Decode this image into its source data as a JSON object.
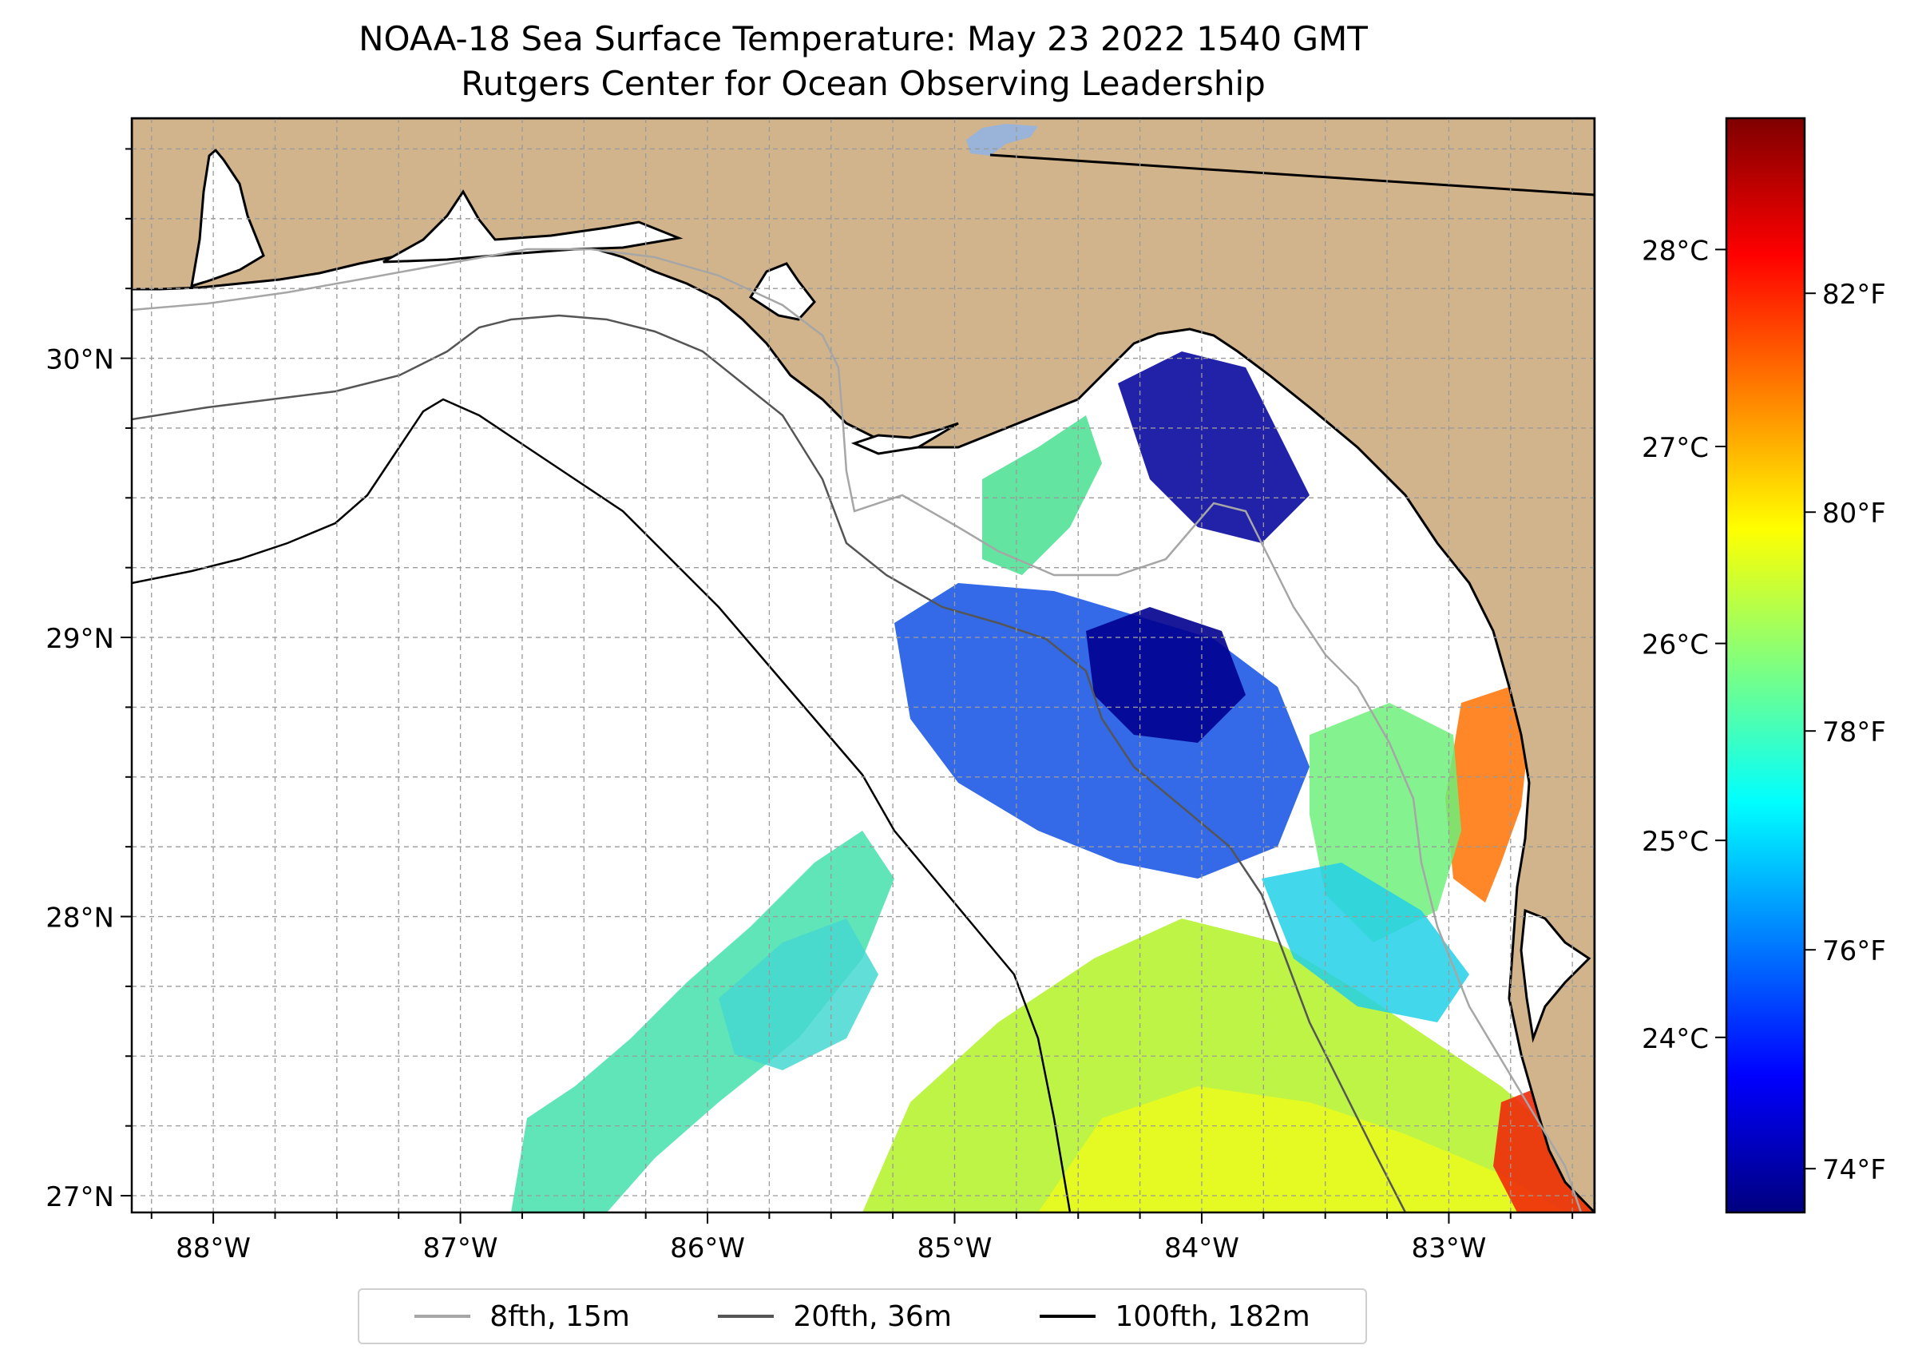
{
  "title": {
    "line1": "NOAA-18 Sea Surface Temperature: May 23 2022 1540 GMT",
    "line2": "Rutgers Center for Ocean Observing Leadership"
  },
  "map": {
    "lon_range": [
      -88.33,
      -82.41
    ],
    "lat_range": [
      26.94,
      30.86
    ],
    "lat_ticks": [
      {
        "value": 30,
        "label": "30°N"
      },
      {
        "value": 29,
        "label": "29°N"
      },
      {
        "value": 28,
        "label": "28°N"
      },
      {
        "value": 27,
        "label": "27°N"
      }
    ],
    "lon_ticks": [
      {
        "value": -88,
        "label": "88°W"
      },
      {
        "value": -87,
        "label": "87°W"
      },
      {
        "value": -86,
        "label": "86°W"
      },
      {
        "value": -85,
        "label": "85°W"
      },
      {
        "value": -84,
        "label": "84°W"
      },
      {
        "value": -83,
        "label": "83°W"
      }
    ],
    "land_color": "#d2b48c",
    "lake_color": "#9ab3d9"
  },
  "colorbar": {
    "celsius_ticks": [
      {
        "value": 28,
        "label": "28°C"
      },
      {
        "value": 27,
        "label": "27°C"
      },
      {
        "value": 26,
        "label": "26°C"
      },
      {
        "value": 25,
        "label": "25°C"
      },
      {
        "value": 24,
        "label": "24°C"
      }
    ],
    "fahrenheit_ticks": [
      {
        "value": 82,
        "label": "82°F"
      },
      {
        "value": 80,
        "label": "80°F"
      },
      {
        "value": 78,
        "label": "78°F"
      },
      {
        "value": 76,
        "label": "76°F"
      },
      {
        "value": 74,
        "label": "74°F"
      }
    ],
    "range_f": [
      73.6,
      83.6
    ],
    "colormap": [
      "#00007f",
      "#0000ff",
      "#007fff",
      "#00ffff",
      "#7fff7f",
      "#ffff00",
      "#ff7f00",
      "#ff0000",
      "#7f0000"
    ]
  },
  "legend": {
    "items": [
      {
        "label": "8fth, 15m",
        "color": "#a6a6a6"
      },
      {
        "label": "20fth, 36m",
        "color": "#555555"
      },
      {
        "label": "100fth, 182m",
        "color": "#000000"
      }
    ]
  }
}
